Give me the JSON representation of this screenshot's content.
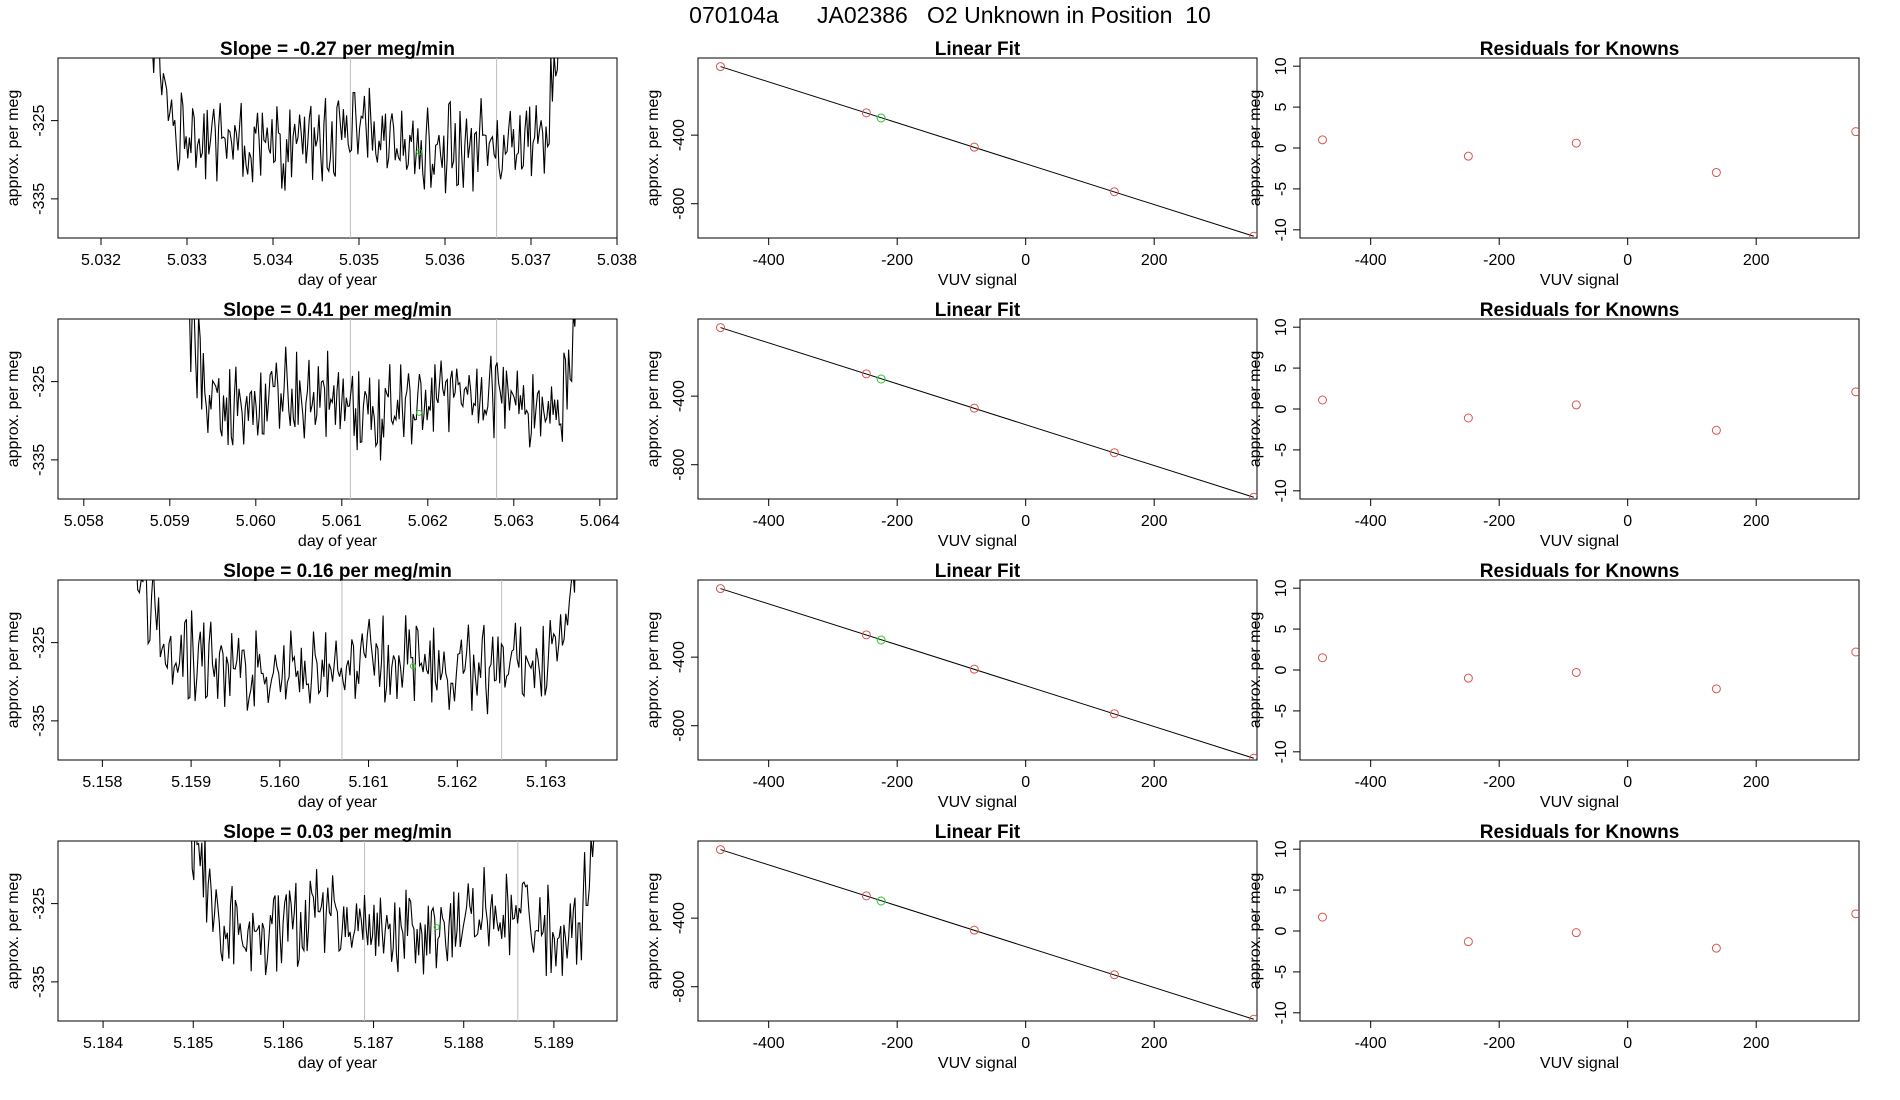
{
  "figure": {
    "title": "070104a      JA02386   O2 Unknown in Position  10"
  },
  "colors": {
    "axis": "#000000",
    "trace": "#000000",
    "vline": "#bebebe",
    "known_point": "#d9534f",
    "unknown_point": "#22cc22",
    "fit_line": "#000000"
  },
  "chart_data": [
    {
      "type": "line",
      "row": 0,
      "panel": "timeseries",
      "title": "Slope =  -0.27  per meg/min",
      "xlabel": "day of year",
      "ylabel": "approx. per meg",
      "xlim": [
        5.0315,
        5.038
      ],
      "ylim": [
        -340,
        -317
      ],
      "xticks": [
        "5.032",
        "5.033",
        "5.034",
        "5.035",
        "5.036",
        "5.037",
        "5.038"
      ],
      "yticks": [
        "-325",
        "-335"
      ],
      "vlines": [
        5.0349,
        5.0366
      ],
      "trace_start": 5.0325,
      "trace_end": 5.0374,
      "marker": {
        "x": 5.0357,
        "y": -329
      }
    },
    {
      "type": "scatter",
      "row": 0,
      "panel": "fit",
      "title": "Linear Fit",
      "xlabel": "VUV signal",
      "ylabel": "approx. per meg",
      "xlim": [
        -510,
        360
      ],
      "ylim": [
        -1000,
        50
      ],
      "xticks": [
        "-400",
        "-200",
        "0",
        "200"
      ],
      "yticks": [
        "-400",
        "-800"
      ],
      "knowns": [
        {
          "x": -475,
          "y": 0
        },
        {
          "x": -248,
          "y": -270
        },
        {
          "x": -80,
          "y": -470
        },
        {
          "x": 138,
          "y": -730
        },
        {
          "x": 355,
          "y": -990
        }
      ],
      "unknown": {
        "x": -225,
        "y": -300
      },
      "fit_line": {
        "x0": -475,
        "y0": 0,
        "x1": 355,
        "y1": -990
      }
    },
    {
      "type": "scatter",
      "row": 0,
      "panel": "residuals",
      "title": "Residuals for Knowns",
      "xlabel": "VUV signal",
      "ylabel": "approx. per meg",
      "xlim": [
        -510,
        360
      ],
      "ylim": [
        -11,
        11
      ],
      "xticks": [
        "-400",
        "-200",
        "0",
        "200"
      ],
      "yticks": [
        "10",
        "5",
        "0",
        "-5",
        "-10"
      ],
      "points": [
        {
          "x": -475,
          "y": 1.0
        },
        {
          "x": -248,
          "y": -1.0
        },
        {
          "x": -80,
          "y": 0.6
        },
        {
          "x": 138,
          "y": -3.0
        },
        {
          "x": 355,
          "y": 2.0
        }
      ]
    },
    {
      "type": "line",
      "row": 1,
      "panel": "timeseries",
      "title": "Slope =  0.41  per meg/min",
      "xlabel": "day of year",
      "ylabel": "approx. per meg",
      "xlim": [
        5.0577,
        5.0642
      ],
      "ylim": [
        -340,
        -317
      ],
      "xticks": [
        "5.058",
        "5.059",
        "5.060",
        "5.061",
        "5.062",
        "5.063",
        "5.064"
      ],
      "yticks": [
        "-325",
        "-335"
      ],
      "vlines": [
        5.0611,
        5.0628
      ],
      "trace_start": 5.0591,
      "trace_end": 5.0638,
      "marker": {
        "x": 5.0619,
        "y": -329
      }
    },
    {
      "type": "scatter",
      "row": 1,
      "panel": "fit",
      "title": "Linear Fit",
      "xlabel": "VUV signal",
      "ylabel": "approx. per meg",
      "xlim": [
        -510,
        360
      ],
      "ylim": [
        -1000,
        50
      ],
      "xticks": [
        "-400",
        "-200",
        "0",
        "200"
      ],
      "yticks": [
        "-400",
        "-800"
      ],
      "knowns": [
        {
          "x": -475,
          "y": 0
        },
        {
          "x": -248,
          "y": -270
        },
        {
          "x": -80,
          "y": -470
        },
        {
          "x": 138,
          "y": -730
        },
        {
          "x": 355,
          "y": -990
        }
      ],
      "unknown": {
        "x": -225,
        "y": -300
      },
      "fit_line": {
        "x0": -475,
        "y0": 0,
        "x1": 355,
        "y1": -990
      }
    },
    {
      "type": "scatter",
      "row": 1,
      "panel": "residuals",
      "title": "Residuals for Knowns",
      "xlabel": "VUV signal",
      "ylabel": "approx. per meg",
      "xlim": [
        -510,
        360
      ],
      "ylim": [
        -11,
        11
      ],
      "xticks": [
        "-400",
        "-200",
        "0",
        "200"
      ],
      "yticks": [
        "10",
        "5",
        "0",
        "-5",
        "-10"
      ],
      "points": [
        {
          "x": -475,
          "y": 1.1
        },
        {
          "x": -248,
          "y": -1.1
        },
        {
          "x": -80,
          "y": 0.5
        },
        {
          "x": 138,
          "y": -2.6
        },
        {
          "x": 355,
          "y": 2.1
        }
      ]
    },
    {
      "type": "line",
      "row": 2,
      "panel": "timeseries",
      "title": "Slope =  0.16  per meg/min",
      "xlabel": "day of year",
      "ylabel": "approx. per meg",
      "xlim": [
        5.1575,
        5.1638
      ],
      "ylim": [
        -340,
        -317
      ],
      "xticks": [
        "5.158",
        "5.159",
        "5.160",
        "5.161",
        "5.162",
        "5.163"
      ],
      "yticks": [
        "-325",
        "-335"
      ],
      "vlines": [
        5.1607,
        5.1625
      ],
      "trace_start": 5.1583,
      "trace_end": 5.1634,
      "marker": {
        "x": 5.1615,
        "y": -328
      }
    },
    {
      "type": "scatter",
      "row": 2,
      "panel": "fit",
      "title": "Linear Fit",
      "xlabel": "VUV signal",
      "ylabel": "approx. per meg",
      "xlim": [
        -510,
        360
      ],
      "ylim": [
        -1000,
        50
      ],
      "xticks": [
        "-400",
        "-200",
        "0",
        "200"
      ],
      "yticks": [
        "-400",
        "-800"
      ],
      "knowns": [
        {
          "x": -475,
          "y": 0
        },
        {
          "x": -248,
          "y": -270
        },
        {
          "x": -80,
          "y": -470
        },
        {
          "x": 138,
          "y": -730
        },
        {
          "x": 355,
          "y": -990
        }
      ],
      "unknown": {
        "x": -225,
        "y": -300
      },
      "fit_line": {
        "x0": -475,
        "y0": 0,
        "x1": 355,
        "y1": -990
      }
    },
    {
      "type": "scatter",
      "row": 2,
      "panel": "residuals",
      "title": "Residuals for Knowns",
      "xlabel": "VUV signal",
      "ylabel": "approx. per meg",
      "xlim": [
        -510,
        360
      ],
      "ylim": [
        -11,
        11
      ],
      "xticks": [
        "-400",
        "-200",
        "0",
        "200"
      ],
      "yticks": [
        "10",
        "5",
        "0",
        "-5",
        "-10"
      ],
      "points": [
        {
          "x": -475,
          "y": 1.5
        },
        {
          "x": -248,
          "y": -1.0
        },
        {
          "x": -80,
          "y": -0.3
        },
        {
          "x": 138,
          "y": -2.3
        },
        {
          "x": 355,
          "y": 2.2
        }
      ]
    },
    {
      "type": "line",
      "row": 3,
      "panel": "timeseries",
      "title": "Slope =  0.03  per meg/min",
      "xlabel": "day of year",
      "ylabel": "approx. per meg",
      "xlim": [
        5.1835,
        5.1897
      ],
      "ylim": [
        -340,
        -317
      ],
      "xticks": [
        "5.184",
        "5.185",
        "5.186",
        "5.187",
        "5.188",
        "5.189"
      ],
      "yticks": [
        "-325",
        "-335"
      ],
      "vlines": [
        5.1869,
        5.1886
      ],
      "trace_start": 5.1849,
      "trace_end": 5.1895,
      "marker": {
        "x": 5.1877,
        "y": -328
      }
    },
    {
      "type": "scatter",
      "row": 3,
      "panel": "fit",
      "title": "Linear Fit",
      "xlabel": "VUV signal",
      "ylabel": "approx. per meg",
      "xlim": [
        -510,
        360
      ],
      "ylim": [
        -1000,
        50
      ],
      "xticks": [
        "-400",
        "-200",
        "0",
        "200"
      ],
      "yticks": [
        "-400",
        "-800"
      ],
      "knowns": [
        {
          "x": -475,
          "y": 0
        },
        {
          "x": -248,
          "y": -270
        },
        {
          "x": -80,
          "y": -470
        },
        {
          "x": 138,
          "y": -730
        },
        {
          "x": 355,
          "y": -990
        }
      ],
      "unknown": {
        "x": -225,
        "y": -300
      },
      "fit_line": {
        "x0": -475,
        "y0": 0,
        "x1": 355,
        "y1": -990
      }
    },
    {
      "type": "scatter",
      "row": 3,
      "panel": "residuals",
      "title": "Residuals for Knowns",
      "xlabel": "VUV signal",
      "ylabel": "approx. per meg",
      "xlim": [
        -510,
        360
      ],
      "ylim": [
        -11,
        11
      ],
      "xticks": [
        "-400",
        "-200",
        "0",
        "200"
      ],
      "yticks": [
        "10",
        "5",
        "0",
        "-5",
        "-10"
      ],
      "points": [
        {
          "x": -475,
          "y": 1.7
        },
        {
          "x": -248,
          "y": -1.3
        },
        {
          "x": -80,
          "y": -0.2
        },
        {
          "x": 138,
          "y": -2.1
        },
        {
          "x": 355,
          "y": 2.1
        }
      ]
    }
  ]
}
